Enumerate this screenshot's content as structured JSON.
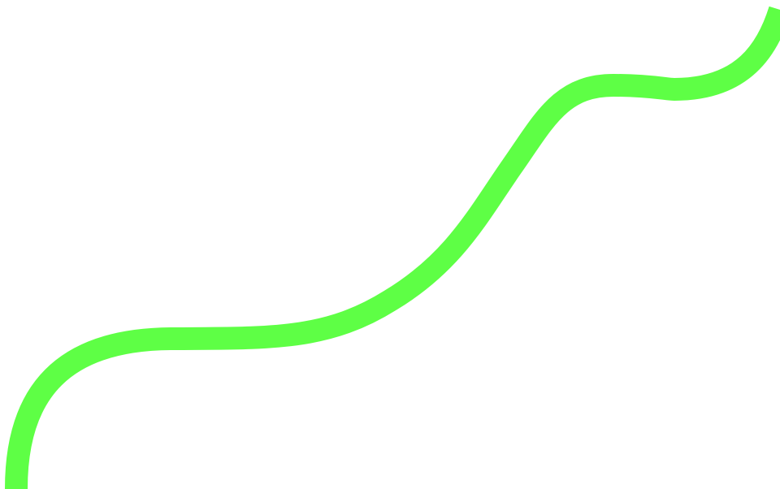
{
  "background_color": "#ffffff",
  "curve": {
    "name": "green-wave",
    "color": "#5eff45",
    "shape": "smooth S-shaped band rising from bottom-left corner to top-right corner"
  }
}
